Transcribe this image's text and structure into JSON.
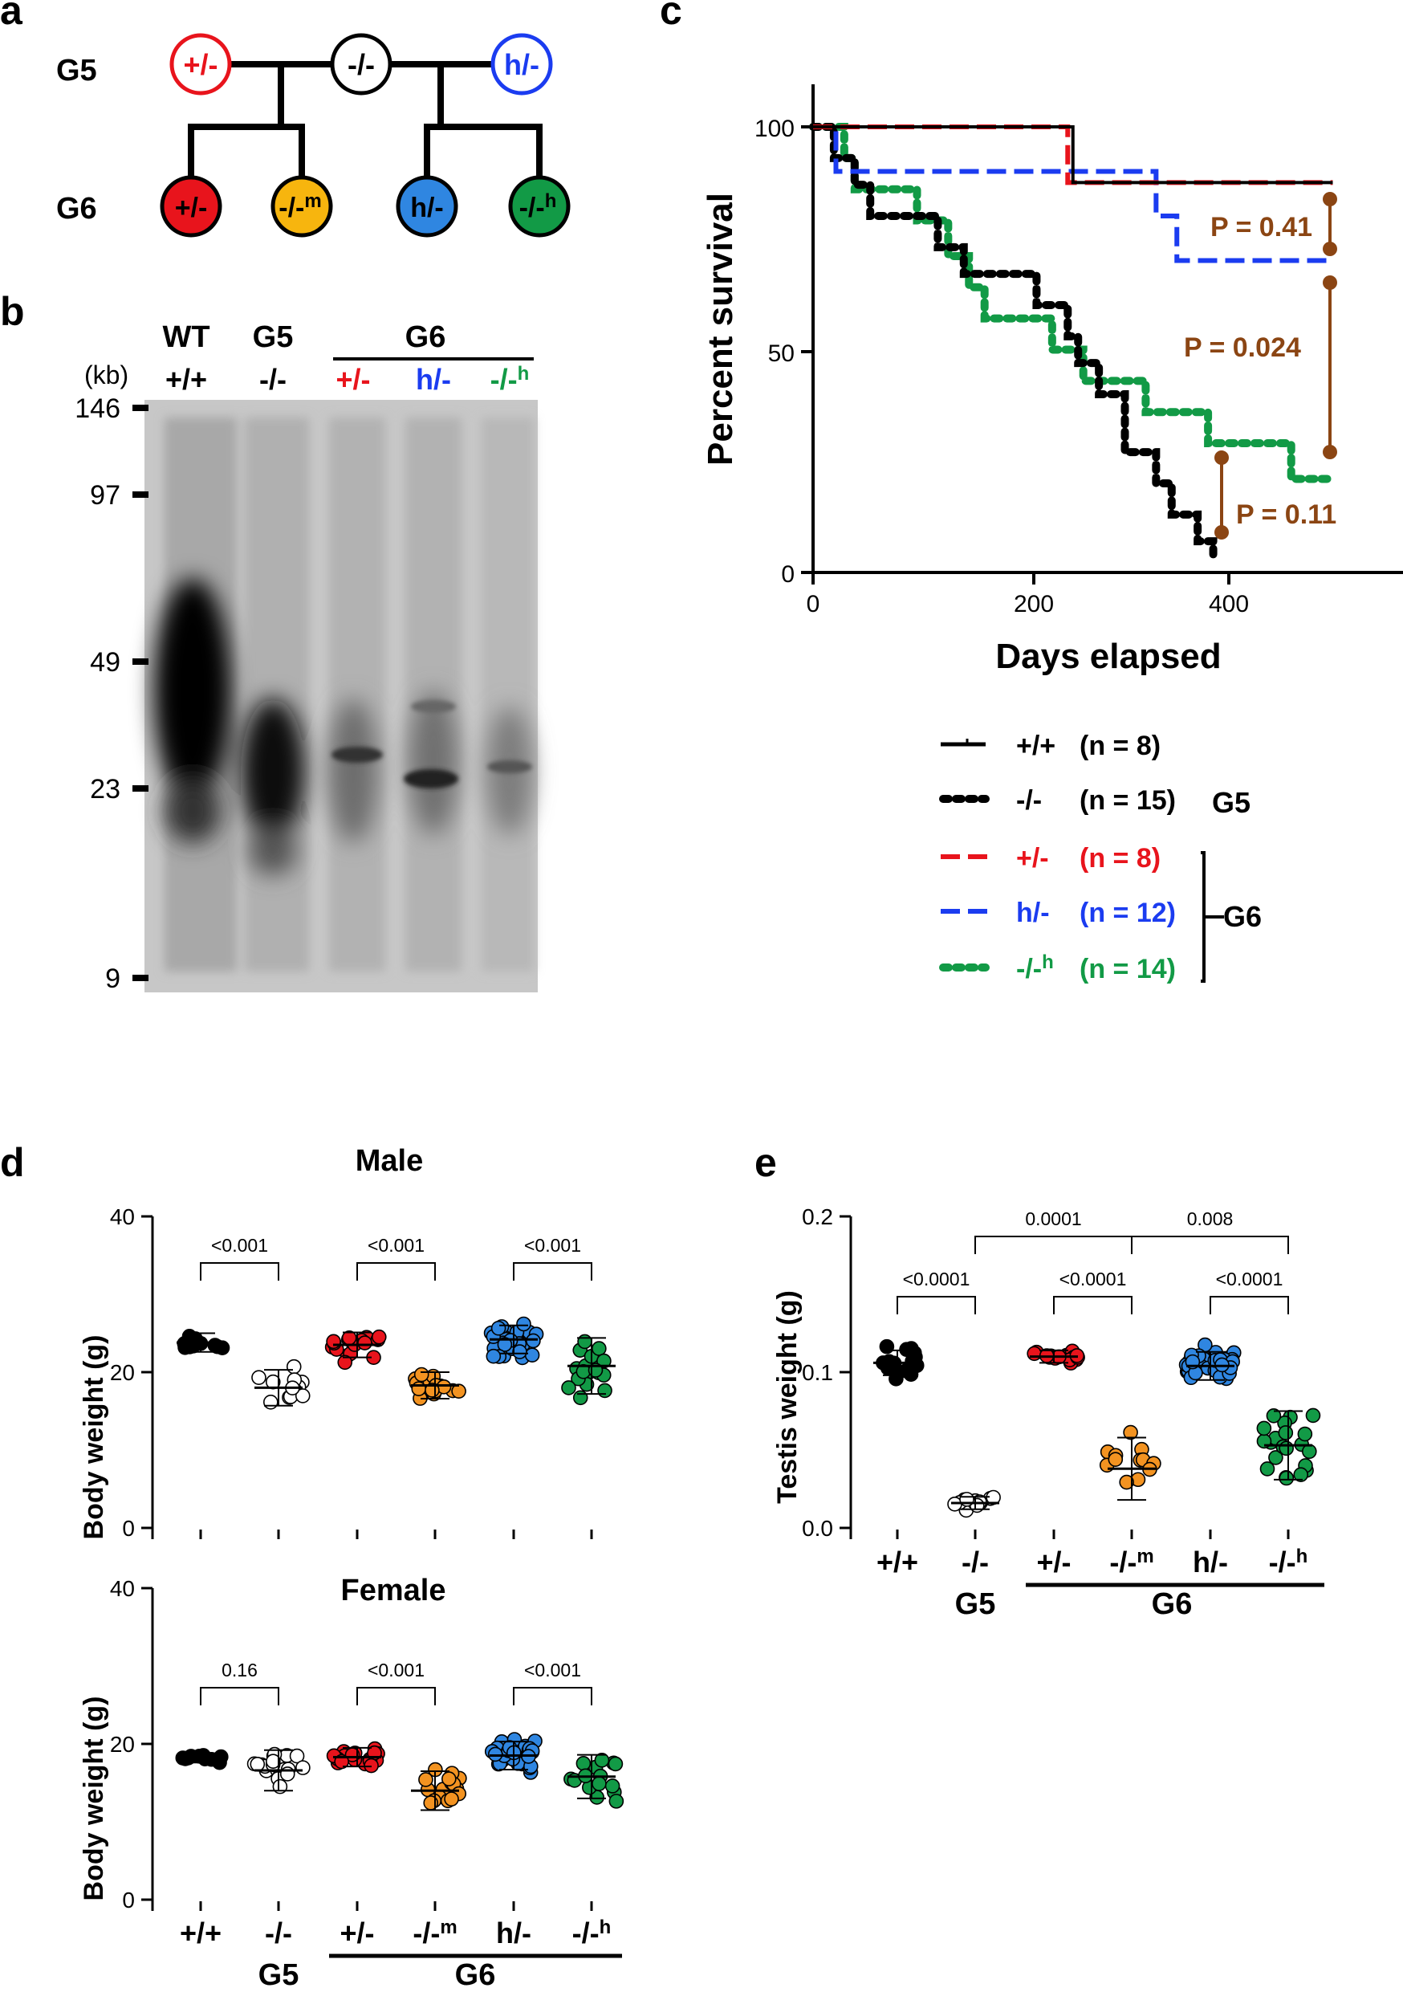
{
  "panel_letters": {
    "a": "a",
    "b": "b",
    "c": "c",
    "d": "d",
    "e": "e"
  },
  "colors": {
    "red": "#e8141c",
    "blue": "#1b3cf0",
    "green": "#129a46",
    "black": "#000000",
    "orange": "#f39321",
    "cyan": "#2f86e1",
    "yellow": "#f7b50e",
    "brown": "#8b4513",
    "gel_bg": "#c8c8c8"
  },
  "pedigree": {
    "gen_labels": [
      "G5",
      "G6"
    ],
    "g5_nodes": [
      "+/-",
      "-/-",
      "h/-"
    ],
    "g6_nodes": [
      {
        "main": "+/-",
        "sup": "",
        "color": "#e8141c"
      },
      {
        "main": "-/-",
        "sup": "m",
        "color": "#f7b50e"
      },
      {
        "main": "h/-",
        "sup": "",
        "color": "#2f86e1"
      },
      {
        "main": "-/-",
        "sup": "h",
        "color": "#129a46"
      }
    ]
  },
  "gel": {
    "kb_label": "(kb)",
    "markers": [
      "146",
      "97",
      "49",
      "23",
      "9"
    ],
    "lanes_top": [
      "WT",
      "G5"
    ],
    "g6_label": "G6",
    "lanes": [
      {
        "main": "+/+",
        "sup": "",
        "color": "#000000"
      },
      {
        "main": "-/-",
        "sup": "",
        "color": "#000000"
      },
      {
        "main": "+/-",
        "sup": "",
        "color": "#e8141c"
      },
      {
        "main": "h/-",
        "sup": "",
        "color": "#1b3cf0"
      },
      {
        "main": "-/-",
        "sup": "h",
        "color": "#129a46"
      }
    ]
  },
  "survival": {
    "ylabel": "Percent survival",
    "xlabel": "Days elapsed",
    "yticks": [
      "0",
      "50",
      "100"
    ],
    "xticks": [
      "0",
      "200",
      "400"
    ],
    "pvalues": [
      "P = 0.41",
      "P = 0.024",
      "P = 0.11"
    ],
    "legend": [
      {
        "geno": "+/+",
        "sup": "",
        "n": "(n = 8)",
        "color": "#000000",
        "style": "solid"
      },
      {
        "geno": "-/-",
        "sup": "",
        "n": "(n = 15)",
        "color": "#000000",
        "style": "dotted"
      },
      {
        "geno": "+/-",
        "sup": "",
        "n": "(n = 8)",
        "color": "#e8141c",
        "style": "dashed"
      },
      {
        "geno": "h/-",
        "sup": "",
        "n": "(n = 12)",
        "color": "#1b3cf0",
        "style": "dashed"
      },
      {
        "geno": "-/-",
        "sup": "h",
        "n": "(n = 14)",
        "color": "#129a46",
        "style": "dotted"
      }
    ],
    "group_g5": "G5",
    "group_g6": "G6"
  },
  "chart_data": [
    {
      "type": "line",
      "title": "",
      "xlabel": "Days elapsed",
      "ylabel": "Percent survival",
      "xlim": [
        0,
        500
      ],
      "ylim": [
        0,
        100
      ],
      "series": [
        {
          "name": "+/+ (n = 8)",
          "x": [
            0,
            250,
            250,
            500
          ],
          "y": [
            100,
            100,
            87.5,
            87.5
          ]
        },
        {
          "name": "-/- (n = 15)",
          "x": [
            0,
            20,
            30,
            40,
            45,
            55,
            60,
            100,
            120,
            145,
            170,
            180,
            200,
            215,
            225,
            245,
            255,
            275,
            290,
            300,
            330,
            345,
            350,
            365,
            370,
            380,
            385
          ],
          "y": [
            100,
            93,
            93,
            87,
            87,
            80,
            80,
            80,
            73,
            67,
            67,
            67,
            67,
            60,
            60,
            53,
            47,
            40,
            40,
            27,
            20,
            13,
            13,
            13,
            7,
            7,
            4
          ]
        },
        {
          "name": "+/- (n = 8)",
          "x": [
            0,
            245,
            245,
            500
          ],
          "y": [
            100,
            100,
            87.5,
            87.5
          ]
        },
        {
          "name": "h/- (n = 12)",
          "x": [
            0,
            22,
            22,
            330,
            330,
            350,
            350,
            500
          ],
          "y": [
            100,
            100,
            90,
            90,
            80,
            80,
            70,
            70
          ]
        },
        {
          "name": "-/-h (n = 14)",
          "x": [
            0,
            30,
            40,
            60,
            100,
            130,
            150,
            165,
            175,
            200,
            230,
            260,
            280,
            320,
            380,
            400,
            460,
            500
          ],
          "y": [
            100,
            93,
            86,
            86,
            79,
            71,
            64,
            57,
            57,
            57,
            50,
            43,
            43,
            36,
            29,
            29,
            21,
            21
          ]
        }
      ]
    },
    {
      "type": "scatter",
      "title": "Male",
      "ylabel": "Body weight (g)",
      "ylim": [
        0,
        40
      ],
      "categories": [
        "+/+",
        "-/-",
        "+/-",
        "-/-m",
        "h/-",
        "-/-h"
      ],
      "means": [
        23.8,
        18,
        23.5,
        18.3,
        24.2,
        20.8
      ],
      "sd": [
        1.2,
        2.3,
        1.6,
        1.7,
        1.8,
        3.6
      ],
      "p_values": [
        "<0.001",
        "<0.001",
        "<0.001"
      ]
    },
    {
      "type": "scatter",
      "title": "Female",
      "ylabel": "Body weight (g)",
      "ylim": [
        0,
        40
      ],
      "categories": [
        "+/+",
        "-/-",
        "+/-",
        "-/-m",
        "h/-",
        "-/-h"
      ],
      "means": [
        18.2,
        16.6,
        18.3,
        14,
        18.5,
        15.8
      ],
      "sd": [
        0.6,
        2.6,
        1.2,
        2.5,
        1.8,
        2.8
      ],
      "p_values": [
        "0.16",
        "<0.001",
        "<0.001"
      ]
    },
    {
      "type": "scatter",
      "title": "",
      "ylabel": "Testis weight (g)",
      "ylim": [
        0,
        0.2
      ],
      "categories": [
        "+/+",
        "-/-",
        "+/-",
        "-/-m",
        "h/-",
        "-/-h"
      ],
      "means": [
        0.106,
        0.016,
        0.11,
        0.038,
        0.104,
        0.053
      ],
      "sd": [
        0.008,
        0.004,
        0.004,
        0.02,
        0.009,
        0.022
      ],
      "p_values": [
        "<0.0001",
        "0.0001",
        "<0.0001",
        "0.008",
        "<0.0001"
      ]
    }
  ],
  "dot_plots": {
    "x_labels": [
      {
        "main": "+/+",
        "sup": ""
      },
      {
        "main": "-/-",
        "sup": ""
      },
      {
        "main": "+/-",
        "sup": ""
      },
      {
        "main": "-/-",
        "sup": "m"
      },
      {
        "main": "h/-",
        "sup": ""
      },
      {
        "main": "-/-",
        "sup": "h"
      }
    ],
    "group_g5": "G5",
    "group_g6": "G6",
    "male_title": "Male",
    "female_title": "Female",
    "body_ylabel": "Body weight (g)",
    "testis_ylabel": "Testis weight (g)",
    "body_yticks": [
      "0",
      "20",
      "40"
    ],
    "testis_yticks": [
      "0.0",
      "0.1",
      "0.2"
    ],
    "fill_colors": [
      "#000000",
      "#ffffff",
      "#e8141c",
      "#f39321",
      "#2f86e1",
      "#129a46"
    ]
  }
}
